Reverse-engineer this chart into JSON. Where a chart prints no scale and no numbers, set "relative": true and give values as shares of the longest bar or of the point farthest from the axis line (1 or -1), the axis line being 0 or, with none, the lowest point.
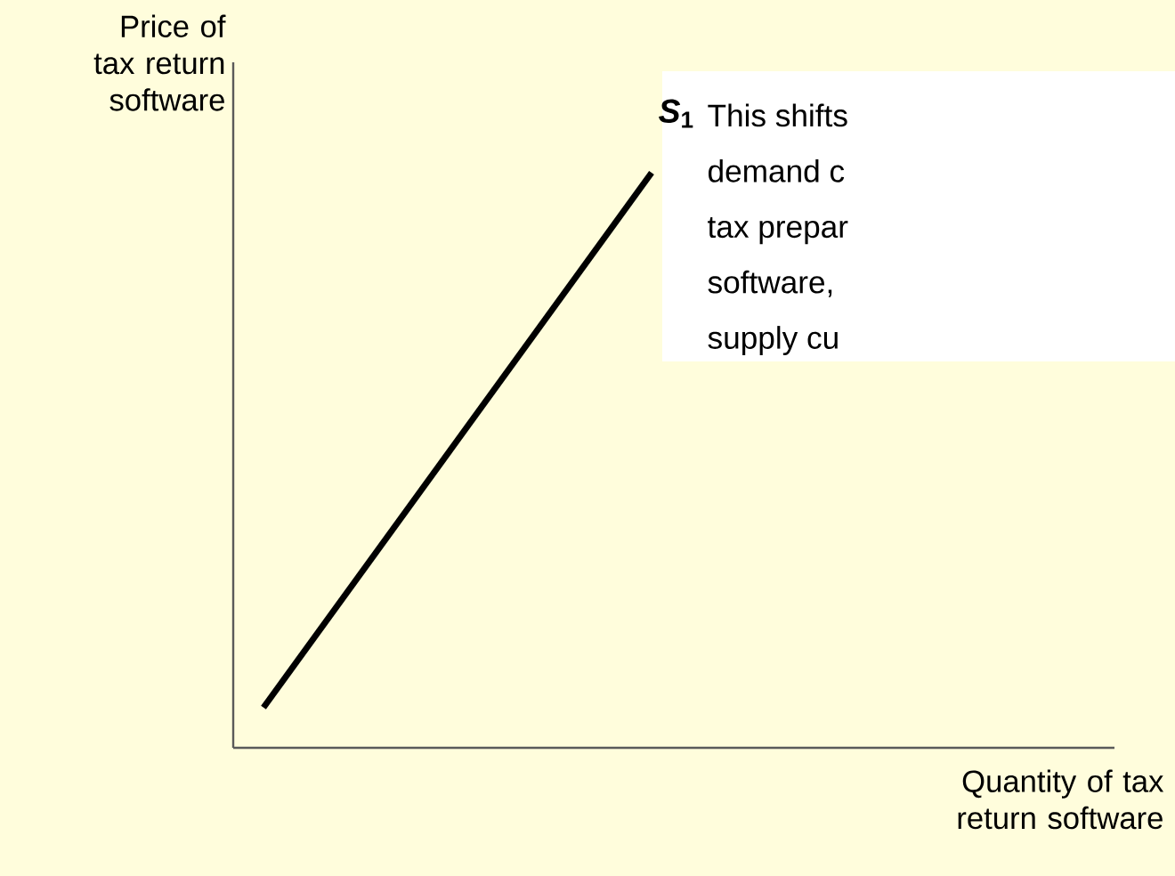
{
  "chart_data": {
    "type": "line",
    "relative": true,
    "ylabel": "Price of tax return software",
    "xlabel": "Quantity of tax return software",
    "categories": [
      null,
      null
    ],
    "series": [
      {
        "color": "#000000",
        "values": [
          0.07,
          1
        ]
      }
    ],
    "annotations": [
      "*S*$_{1}$",
      "This shifts",
      "demand c",
      "tax prepar",
      "software,",
      "supply cu"
    ]
  }
}
